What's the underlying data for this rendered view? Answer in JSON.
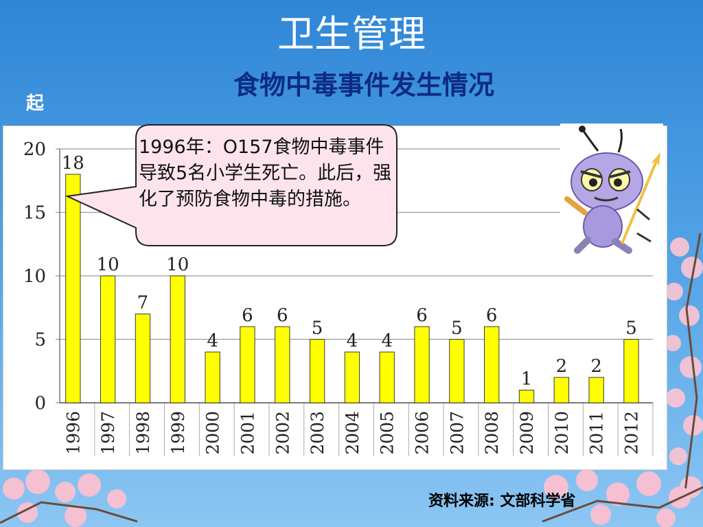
{
  "slide": {
    "title": "卫生管理",
    "subtitle": "食物中毒事件发生情况",
    "corner_label": "起",
    "source": "资料来源: 文部科学省",
    "callout": "1996年：O157食物中毒事件导致5名小学生死亡。此后，强化了预防食物中毒的措施。"
  },
  "colors": {
    "bar": "#ffff00",
    "bar_outline": "#3a3a3a",
    "title": "#ffffff",
    "subtitle": "#0c2b82",
    "callout_fill": "#fde4ec",
    "background": "#3f95dd"
  },
  "icons": {
    "mascot": "purple-ant-mascot-icon",
    "decoration": "cherry-blossom-icon"
  },
  "chart_data": {
    "type": "bar",
    "categories": [
      "1996",
      "1997",
      "1998",
      "1999",
      "2000",
      "2001",
      "2002",
      "2003",
      "2004",
      "2005",
      "2006",
      "2007",
      "2008",
      "2009",
      "2010",
      "2011",
      "2012"
    ],
    "values": [
      18,
      10,
      7,
      10,
      4,
      6,
      6,
      5,
      4,
      4,
      6,
      5,
      6,
      1,
      2,
      2,
      5
    ],
    "data_labels": [
      "18",
      "10",
      "7",
      "10",
      "4",
      "6",
      "6",
      "5",
      "4",
      "4",
      "6",
      "5",
      "6",
      "1",
      "2",
      "2",
      "5"
    ],
    "y_ticks": [
      "0",
      "5",
      "10",
      "15",
      "20"
    ],
    "ylim": [
      0,
      20
    ],
    "grid": true,
    "legend": "none"
  }
}
